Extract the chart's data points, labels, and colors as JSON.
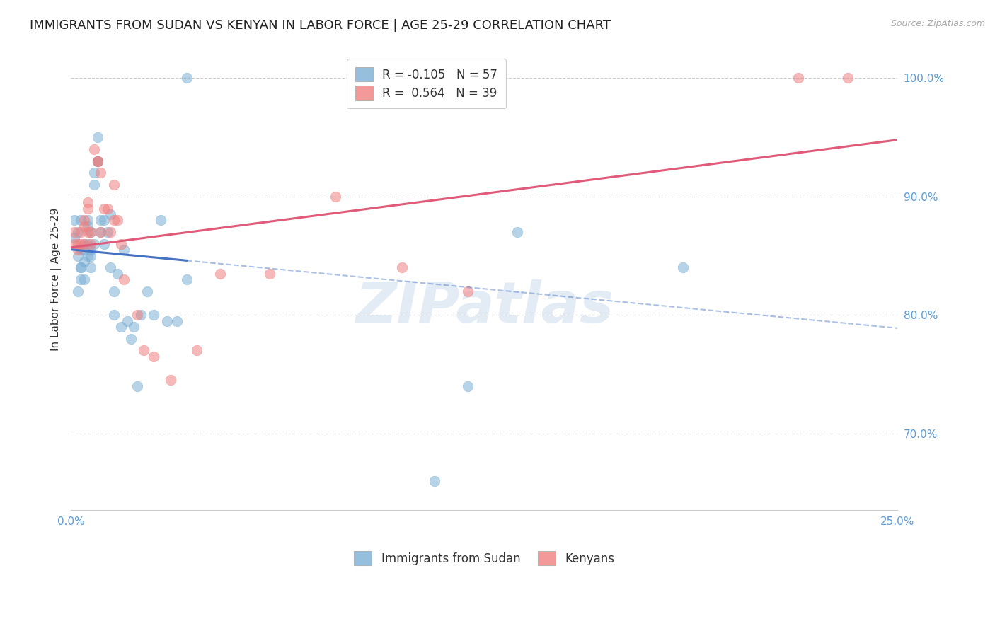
{
  "title": "IMMIGRANTS FROM SUDAN VS KENYAN IN LABOR FORCE | AGE 25-29 CORRELATION CHART",
  "source": "Source: ZipAtlas.com",
  "ylabel": "In Labor Force | Age 25-29",
  "xmin": 0.0,
  "xmax": 0.25,
  "ymin": 0.635,
  "ymax": 1.025,
  "sudan_R": -0.105,
  "sudan_N": 57,
  "kenyan_R": 0.564,
  "kenyan_N": 39,
  "legend_labels": [
    "Immigrants from Sudan",
    "Kenyans"
  ],
  "sudan_color": "#7bafd4",
  "kenyan_color": "#f08080",
  "sudan_line_color": "#4472c4",
  "kenyan_line_color": "#e05a7a",
  "sudan_points_x": [
    0.001,
    0.001,
    0.002,
    0.002,
    0.002,
    0.003,
    0.003,
    0.003,
    0.003,
    0.003,
    0.004,
    0.004,
    0.004,
    0.004,
    0.005,
    0.005,
    0.005,
    0.005,
    0.006,
    0.006,
    0.006,
    0.006,
    0.007,
    0.007,
    0.007,
    0.008,
    0.008,
    0.008,
    0.009,
    0.009,
    0.01,
    0.01,
    0.011,
    0.012,
    0.012,
    0.013,
    0.013,
    0.014,
    0.015,
    0.016,
    0.017,
    0.018,
    0.019,
    0.02,
    0.021,
    0.023,
    0.025,
    0.027,
    0.029,
    0.032,
    0.035,
    0.035,
    0.11,
    0.135,
    0.11,
    0.12,
    0.185
  ],
  "sudan_points_y": [
    0.865,
    0.88,
    0.85,
    0.87,
    0.82,
    0.88,
    0.84,
    0.855,
    0.84,
    0.83,
    0.86,
    0.855,
    0.845,
    0.83,
    0.88,
    0.875,
    0.86,
    0.85,
    0.87,
    0.855,
    0.85,
    0.84,
    0.92,
    0.91,
    0.86,
    0.95,
    0.93,
    0.93,
    0.88,
    0.87,
    0.88,
    0.86,
    0.87,
    0.885,
    0.84,
    0.82,
    0.8,
    0.835,
    0.79,
    0.855,
    0.795,
    0.78,
    0.79,
    0.74,
    0.8,
    0.82,
    0.8,
    0.88,
    0.795,
    0.795,
    0.83,
    1.0,
    1.0,
    0.87,
    0.66,
    0.74,
    0.84
  ],
  "kenyan_points_x": [
    0.001,
    0.001,
    0.002,
    0.002,
    0.003,
    0.003,
    0.004,
    0.004,
    0.004,
    0.005,
    0.005,
    0.005,
    0.006,
    0.006,
    0.007,
    0.008,
    0.008,
    0.009,
    0.009,
    0.01,
    0.011,
    0.012,
    0.013,
    0.013,
    0.014,
    0.015,
    0.016,
    0.02,
    0.022,
    0.025,
    0.03,
    0.038,
    0.045,
    0.06,
    0.08,
    0.1,
    0.12,
    0.22,
    0.235
  ],
  "kenyan_points_y": [
    0.86,
    0.87,
    0.86,
    0.855,
    0.87,
    0.86,
    0.88,
    0.875,
    0.86,
    0.895,
    0.89,
    0.87,
    0.87,
    0.86,
    0.94,
    0.93,
    0.93,
    0.87,
    0.92,
    0.89,
    0.89,
    0.87,
    0.88,
    0.91,
    0.88,
    0.86,
    0.83,
    0.8,
    0.77,
    0.765,
    0.745,
    0.77,
    0.835,
    0.835,
    0.9,
    0.84,
    0.82,
    1.0,
    1.0
  ],
  "sudan_line_x_start": 0.0,
  "sudan_line_x_solid_end": 0.035,
  "sudan_line_x_dashed_end": 0.25,
  "watermark": "ZIPatlas",
  "background_color": "#ffffff",
  "grid_color": "#cccccc",
  "tick_label_color": "#5b9bd5",
  "title_fontsize": 13,
  "axis_label_fontsize": 11,
  "tick_label_fontsize": 11,
  "legend_fontsize": 12,
  "source_fontsize": 9
}
